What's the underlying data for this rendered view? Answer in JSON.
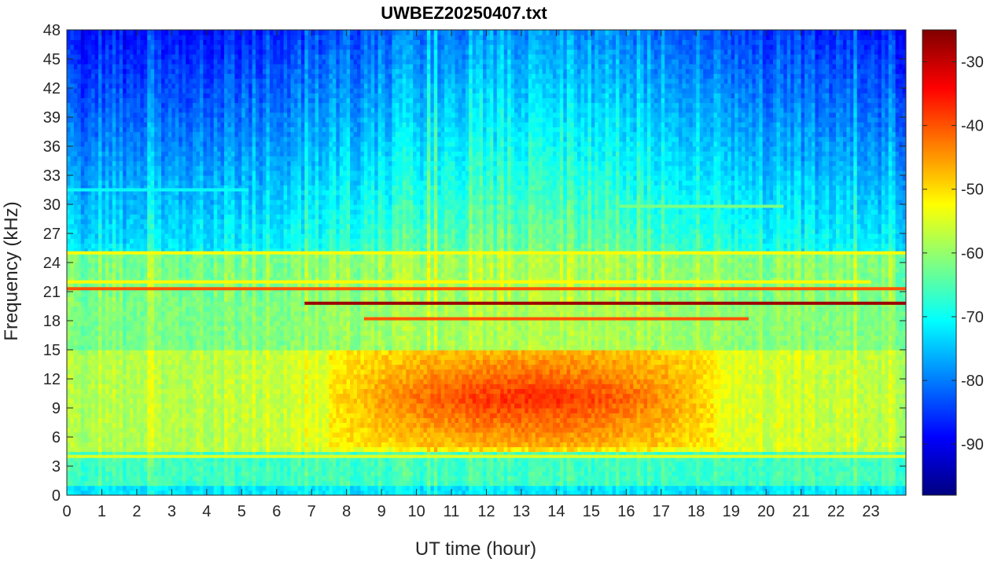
{
  "chart_data": {
    "type": "heatmap",
    "title": "UWBEZ20250407.txt",
    "xlabel": "UT time (hour)",
    "ylabel": "Frequency (kHz)",
    "xlim": [
      0,
      24
    ],
    "ylim": [
      0,
      48
    ],
    "x_ticks": [
      "0",
      "1",
      "2",
      "3",
      "4",
      "5",
      "6",
      "7",
      "8",
      "9",
      "10",
      "11",
      "12",
      "13",
      "14",
      "15",
      "16",
      "17",
      "18",
      "19",
      "20",
      "21",
      "22",
      "23"
    ],
    "y_ticks": [
      "0",
      "3",
      "6",
      "9",
      "12",
      "15",
      "18",
      "21",
      "24",
      "27",
      "30",
      "33",
      "36",
      "39",
      "42",
      "45",
      "48"
    ],
    "colorbar": {
      "colormap": "jet",
      "clim": [
        -98,
        -25
      ],
      "ticks": [
        "-90",
        "-80",
        "-70",
        "-60",
        "-50",
        "-40",
        "-30"
      ]
    },
    "grid": false,
    "features": [
      {
        "kind": "narrowband",
        "freq_khz": 21.3,
        "t_start": 0,
        "t_end": 24,
        "level_db": -40
      },
      {
        "kind": "narrowband",
        "freq_khz": 19.8,
        "t_start": 6.8,
        "t_end": 24,
        "level_db": -27
      },
      {
        "kind": "narrowband",
        "freq_khz": 18.2,
        "t_start": 8.5,
        "t_end": 19.5,
        "level_db": -40
      },
      {
        "kind": "narrowband",
        "freq_khz": 25.0,
        "t_start": 0,
        "t_end": 24,
        "level_db": -52
      },
      {
        "kind": "narrowband",
        "freq_khz": 22.0,
        "t_start": 0,
        "t_end": 23,
        "level_db": -52
      },
      {
        "kind": "narrowband",
        "freq_khz": 4.0,
        "t_start": 0,
        "t_end": 24,
        "level_db": -55
      },
      {
        "kind": "narrowband",
        "freq_khz": 31.5,
        "t_start": 0,
        "t_end": 5.2,
        "level_db": -70
      },
      {
        "kind": "narrowband",
        "freq_khz": 29.8,
        "t_start": 15.8,
        "t_end": 20.5,
        "level_db": -62
      },
      {
        "kind": "broadband_noise",
        "freq_range_khz": [
          5,
          15
        ],
        "t_start": 7.5,
        "t_end": 18.5,
        "peak_level_db": -45
      }
    ]
  }
}
